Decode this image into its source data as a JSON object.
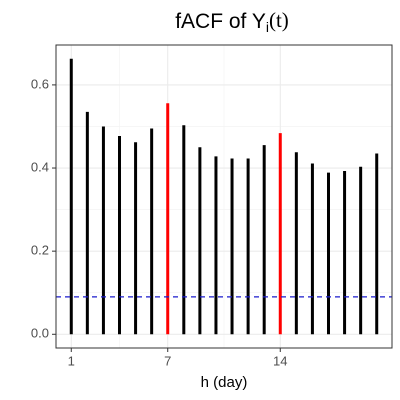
{
  "chart_data": {
    "type": "stem",
    "title": [
      "fACF of Y",
      "i",
      "(t)"
    ],
    "xlabel": "h (day)",
    "x": [
      1,
      2,
      3,
      4,
      5,
      6,
      7,
      8,
      9,
      10,
      11,
      12,
      13,
      14,
      15,
      16,
      17,
      18,
      19,
      20
    ],
    "values": [
      0.663,
      0.535,
      0.5,
      0.477,
      0.462,
      0.495,
      0.556,
      0.503,
      0.45,
      0.428,
      0.423,
      0.423,
      0.455,
      0.484,
      0.438,
      0.411,
      0.389,
      0.393,
      0.403,
      0.435
    ],
    "colors": [
      "#000000",
      "#000000",
      "#000000",
      "#000000",
      "#000000",
      "#000000",
      "#ff0000",
      "#000000",
      "#000000",
      "#000000",
      "#000000",
      "#000000",
      "#000000",
      "#ff0000",
      "#000000",
      "#000000",
      "#000000",
      "#000000",
      "#000000",
      "#000000"
    ],
    "hline": {
      "value": 0.09,
      "color": "#1a1acc",
      "style": "dashed"
    },
    "xlim": [
      0.05,
      20.95
    ],
    "ylim": [
      -0.033,
      0.696
    ],
    "xticks": [
      1,
      7,
      14
    ],
    "yticks": [
      {
        "value": 0,
        "label": "0.0"
      },
      0.2,
      0.4,
      0.6
    ],
    "grid": true
  }
}
